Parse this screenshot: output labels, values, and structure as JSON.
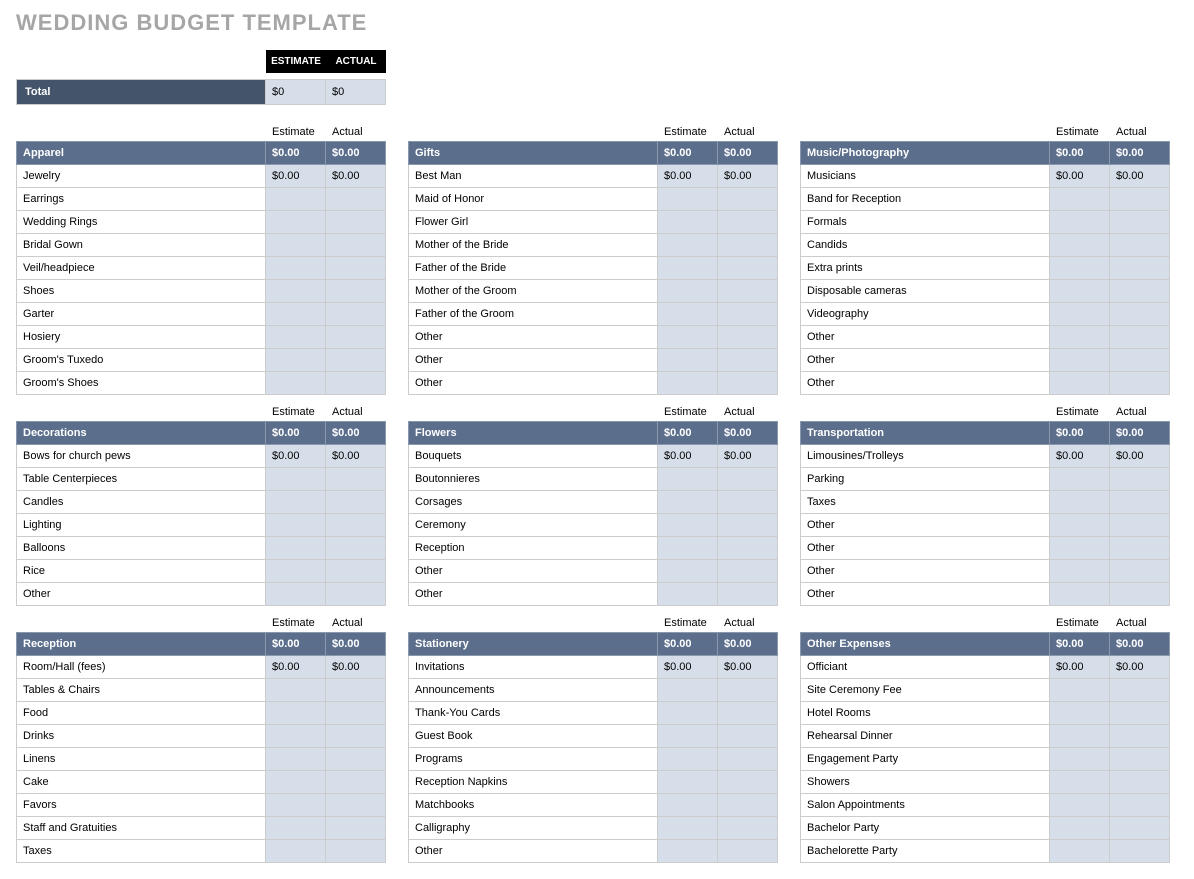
{
  "title": "WEDDING BUDGET TEMPLATE",
  "topHeaders": {
    "estimate": "ESTIMATE",
    "actual": "ACTUAL"
  },
  "columnHeaders": {
    "estimate": "Estimate",
    "actual": "Actual"
  },
  "total": {
    "label": "Total",
    "estimate": "$0",
    "actual": "$0"
  },
  "colors": {
    "title": "#a6a6a6",
    "headerBlack": "#000000",
    "totalBar": "#44546a",
    "catHeader": "#5b6e8c",
    "numCellBg": "#d6dfe9",
    "border": "#cccccc"
  },
  "categories": [
    {
      "name": "Apparel",
      "estimate": "$0.00",
      "actual": "$0.00",
      "row": 0,
      "col": 0,
      "items": [
        {
          "label": "Jewelry",
          "estimate": "$0.00",
          "actual": "$0.00"
        },
        {
          "label": "Earrings",
          "estimate": "",
          "actual": ""
        },
        {
          "label": "Wedding Rings",
          "estimate": "",
          "actual": ""
        },
        {
          "label": "Bridal Gown",
          "estimate": "",
          "actual": ""
        },
        {
          "label": "Veil/headpiece",
          "estimate": "",
          "actual": ""
        },
        {
          "label": "Shoes",
          "estimate": "",
          "actual": ""
        },
        {
          "label": "Garter",
          "estimate": "",
          "actual": ""
        },
        {
          "label": "Hosiery",
          "estimate": "",
          "actual": ""
        },
        {
          "label": "Groom's Tuxedo",
          "estimate": "",
          "actual": ""
        },
        {
          "label": "Groom's Shoes",
          "estimate": "",
          "actual": ""
        }
      ]
    },
    {
      "name": "Gifts",
      "estimate": "$0.00",
      "actual": "$0.00",
      "row": 0,
      "col": 1,
      "items": [
        {
          "label": "Best Man",
          "estimate": "$0.00",
          "actual": "$0.00"
        },
        {
          "label": "Maid of Honor",
          "estimate": "",
          "actual": ""
        },
        {
          "label": "Flower Girl",
          "estimate": "",
          "actual": ""
        },
        {
          "label": "Mother of the Bride",
          "estimate": "",
          "actual": ""
        },
        {
          "label": "Father of the Bride",
          "estimate": "",
          "actual": ""
        },
        {
          "label": "Mother of the Groom",
          "estimate": "",
          "actual": ""
        },
        {
          "label": "Father of the Groom",
          "estimate": "",
          "actual": ""
        },
        {
          "label": "Other",
          "estimate": "",
          "actual": ""
        },
        {
          "label": "Other",
          "estimate": "",
          "actual": ""
        },
        {
          "label": "Other",
          "estimate": "",
          "actual": ""
        }
      ]
    },
    {
      "name": "Music/Photography",
      "estimate": "$0.00",
      "actual": "$0.00",
      "row": 0,
      "col": 2,
      "items": [
        {
          "label": "Musicians",
          "estimate": "$0.00",
          "actual": "$0.00"
        },
        {
          "label": "Band for Reception",
          "estimate": "",
          "actual": ""
        },
        {
          "label": "Formals",
          "estimate": "",
          "actual": ""
        },
        {
          "label": "Candids",
          "estimate": "",
          "actual": ""
        },
        {
          "label": "Extra prints",
          "estimate": "",
          "actual": ""
        },
        {
          "label": "Disposable cameras",
          "estimate": "",
          "actual": ""
        },
        {
          "label": "Videography",
          "estimate": "",
          "actual": ""
        },
        {
          "label": "Other",
          "estimate": "",
          "actual": ""
        },
        {
          "label": "Other",
          "estimate": "",
          "actual": ""
        },
        {
          "label": "Other",
          "estimate": "",
          "actual": ""
        }
      ]
    },
    {
      "name": "Decorations",
      "estimate": "$0.00",
      "actual": "$0.00",
      "row": 1,
      "col": 0,
      "items": [
        {
          "label": "Bows for church pews",
          "estimate": "$0.00",
          "actual": "$0.00"
        },
        {
          "label": "Table Centerpieces",
          "estimate": "",
          "actual": ""
        },
        {
          "label": "Candles",
          "estimate": "",
          "actual": ""
        },
        {
          "label": "Lighting",
          "estimate": "",
          "actual": ""
        },
        {
          "label": "Balloons",
          "estimate": "",
          "actual": ""
        },
        {
          "label": "Rice",
          "estimate": "",
          "actual": ""
        },
        {
          "label": "Other",
          "estimate": "",
          "actual": ""
        }
      ]
    },
    {
      "name": "Flowers",
      "estimate": "$0.00",
      "actual": "$0.00",
      "row": 1,
      "col": 1,
      "items": [
        {
          "label": "Bouquets",
          "estimate": "$0.00",
          "actual": "$0.00"
        },
        {
          "label": "Boutonnieres",
          "estimate": "",
          "actual": ""
        },
        {
          "label": "Corsages",
          "estimate": "",
          "actual": ""
        },
        {
          "label": "Ceremony",
          "estimate": "",
          "actual": ""
        },
        {
          "label": "Reception",
          "estimate": "",
          "actual": ""
        },
        {
          "label": "Other",
          "estimate": "",
          "actual": ""
        },
        {
          "label": "Other",
          "estimate": "",
          "actual": ""
        }
      ]
    },
    {
      "name": "Transportation",
      "estimate": "$0.00",
      "actual": "$0.00",
      "row": 1,
      "col": 2,
      "items": [
        {
          "label": "Limousines/Trolleys",
          "estimate": "$0.00",
          "actual": "$0.00"
        },
        {
          "label": "Parking",
          "estimate": "",
          "actual": ""
        },
        {
          "label": "Taxes",
          "estimate": "",
          "actual": ""
        },
        {
          "label": "Other",
          "estimate": "",
          "actual": ""
        },
        {
          "label": "Other",
          "estimate": "",
          "actual": ""
        },
        {
          "label": "Other",
          "estimate": "",
          "actual": ""
        },
        {
          "label": "Other",
          "estimate": "",
          "actual": ""
        }
      ]
    },
    {
      "name": "Reception",
      "estimate": "$0.00",
      "actual": "$0.00",
      "row": 2,
      "col": 0,
      "items": [
        {
          "label": "Room/Hall (fees)",
          "estimate": "$0.00",
          "actual": "$0.00"
        },
        {
          "label": "Tables & Chairs",
          "estimate": "",
          "actual": ""
        },
        {
          "label": "Food",
          "estimate": "",
          "actual": ""
        },
        {
          "label": "Drinks",
          "estimate": "",
          "actual": ""
        },
        {
          "label": "Linens",
          "estimate": "",
          "actual": ""
        },
        {
          "label": "Cake",
          "estimate": "",
          "actual": ""
        },
        {
          "label": "Favors",
          "estimate": "",
          "actual": ""
        },
        {
          "label": "Staff and Gratuities",
          "estimate": "",
          "actual": ""
        },
        {
          "label": "Taxes",
          "estimate": "",
          "actual": ""
        }
      ]
    },
    {
      "name": "Stationery",
      "estimate": "$0.00",
      "actual": "$0.00",
      "row": 2,
      "col": 1,
      "items": [
        {
          "label": "Invitations",
          "estimate": "$0.00",
          "actual": "$0.00"
        },
        {
          "label": "Announcements",
          "estimate": "",
          "actual": ""
        },
        {
          "label": "Thank-You Cards",
          "estimate": "",
          "actual": ""
        },
        {
          "label": "Guest Book",
          "estimate": "",
          "actual": ""
        },
        {
          "label": "Programs",
          "estimate": "",
          "actual": ""
        },
        {
          "label": "Reception Napkins",
          "estimate": "",
          "actual": ""
        },
        {
          "label": "Matchbooks",
          "estimate": "",
          "actual": ""
        },
        {
          "label": "Calligraphy",
          "estimate": "",
          "actual": ""
        },
        {
          "label": "Other",
          "estimate": "",
          "actual": ""
        }
      ]
    },
    {
      "name": "Other Expenses",
      "estimate": "$0.00",
      "actual": "$0.00",
      "row": 2,
      "col": 2,
      "items": [
        {
          "label": "Officiant",
          "estimate": "$0.00",
          "actual": "$0.00"
        },
        {
          "label": "Site Ceremony Fee",
          "estimate": "",
          "actual": ""
        },
        {
          "label": "Hotel Rooms",
          "estimate": "",
          "actual": ""
        },
        {
          "label": "Rehearsal Dinner",
          "estimate": "",
          "actual": ""
        },
        {
          "label": "Engagement Party",
          "estimate": "",
          "actual": ""
        },
        {
          "label": "Showers",
          "estimate": "",
          "actual": ""
        },
        {
          "label": "Salon Appointments",
          "estimate": "",
          "actual": ""
        },
        {
          "label": "Bachelor Party",
          "estimate": "",
          "actual": ""
        },
        {
          "label": "Bachelorette Party",
          "estimate": "",
          "actual": ""
        }
      ]
    }
  ]
}
